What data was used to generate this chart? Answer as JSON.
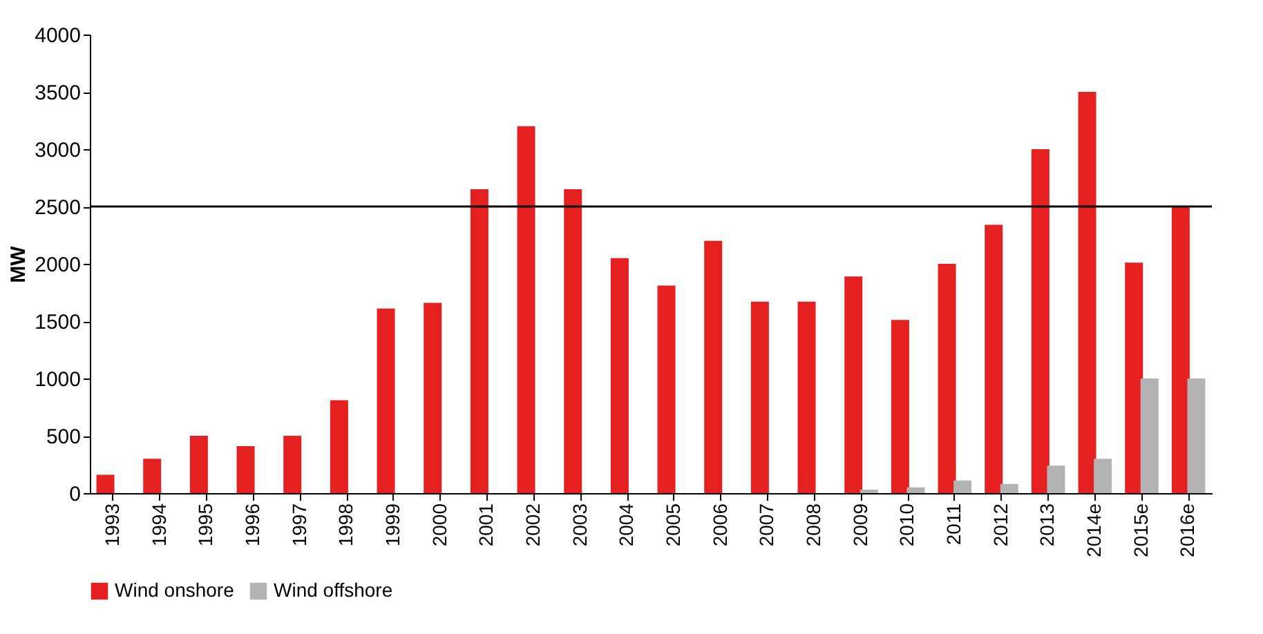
{
  "chart_data": {
    "type": "bar",
    "ylabel": "MW",
    "categories": [
      "1993",
      "1994",
      "1995",
      "1996",
      "1997",
      "1998",
      "1999",
      "2000",
      "2001",
      "2002",
      "2003",
      "2004",
      "2005",
      "2006",
      "2007",
      "2008",
      "2009",
      "2010",
      "2011",
      "2012",
      "2013",
      "2014e",
      "2015e",
      "2016e"
    ],
    "series": [
      {
        "name": "Wind onshore",
        "color": "#e52020",
        "values": [
          160,
          300,
          500,
          410,
          500,
          810,
          1610,
          1660,
          2650,
          3200,
          2650,
          2050,
          1810,
          2200,
          1670,
          1670,
          1890,
          1510,
          2000,
          2340,
          3000,
          3500,
          2010,
          2500
        ]
      },
      {
        "name": "Wind offshore",
        "color": "#b3b3b3",
        "values": [
          null,
          null,
          null,
          null,
          null,
          null,
          null,
          null,
          null,
          null,
          null,
          null,
          null,
          null,
          null,
          null,
          30,
          50,
          110,
          80,
          240,
          300,
          1000,
          1000
        ]
      }
    ],
    "ylim": [
      0,
      4000
    ],
    "yticks": [
      0,
      500,
      1000,
      1500,
      2000,
      2500,
      3000,
      3500,
      4000
    ],
    "ref_lines": [
      {
        "axis": "y",
        "value": 2500,
        "color": "#000000"
      }
    ],
    "grid": false,
    "legend": "bottom"
  }
}
